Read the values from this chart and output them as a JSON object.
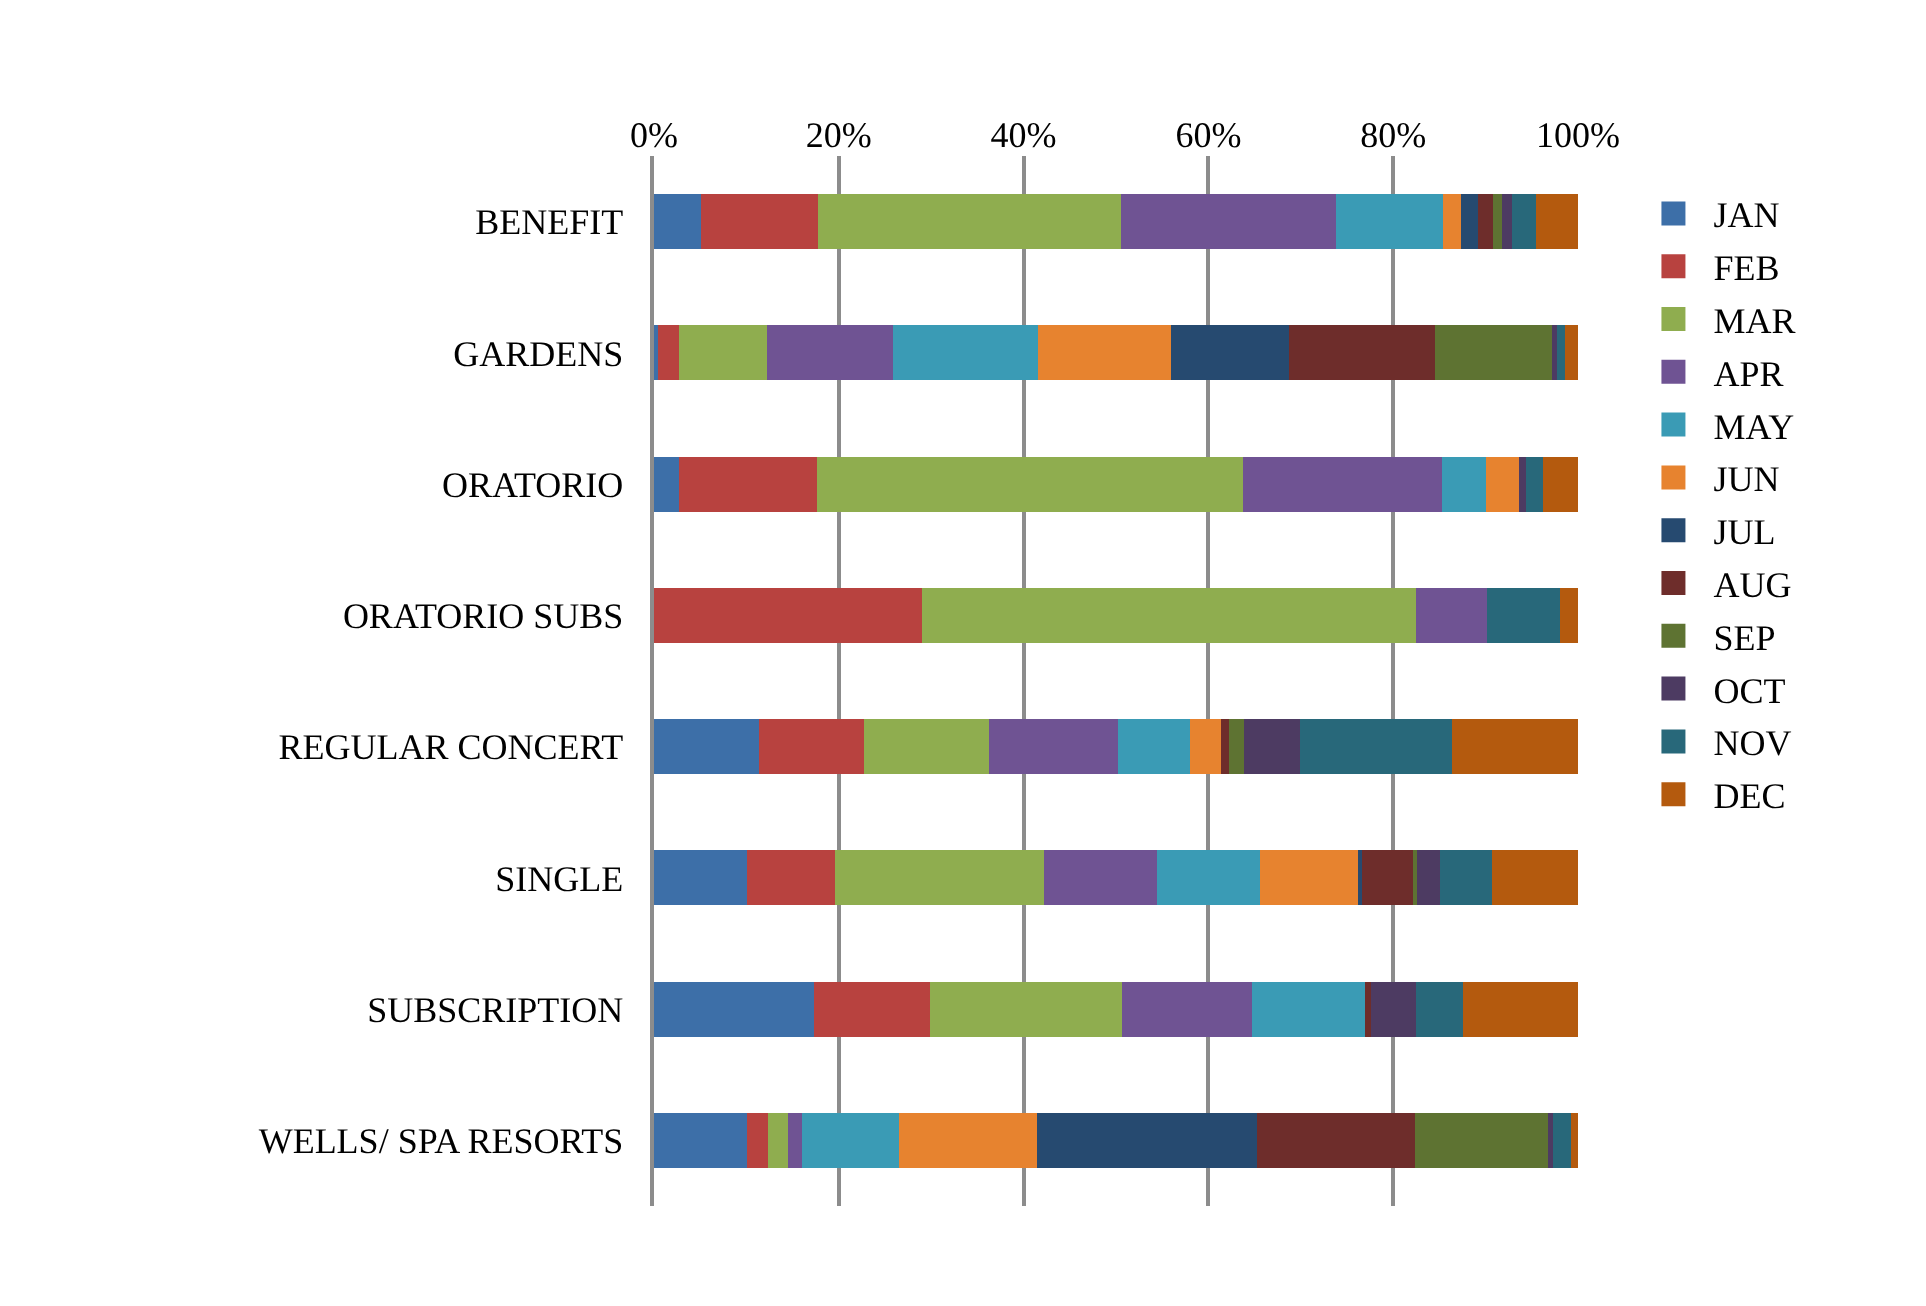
{
  "chart_data": {
    "type": "bar",
    "orientation": "horizontal",
    "stacked": true,
    "categories": [
      "BENEFIT",
      "GARDENS",
      "ORATORIO",
      "ORATORIO SUBS",
      "REGULAR CONCERT",
      "SINGLE",
      "SUBSCRIPTION",
      "WELLS/ SPA RESORTS"
    ],
    "series": [
      {
        "name": "JAN",
        "color": "#3d6fa8",
        "values": [
          5.1,
          0.4,
          2.7,
          0,
          11.4,
          10.1,
          17.3,
          10.1
        ]
      },
      {
        "name": "FEB",
        "color": "#b8423f",
        "values": [
          12.6,
          2.3,
          14.9,
          29.0,
          11.3,
          9.5,
          12.6,
          2.2
        ]
      },
      {
        "name": "MAR",
        "color": "#8fad4f",
        "values": [
          32.8,
          9.5,
          46.1,
          53.5,
          13.6,
          22.6,
          20.7,
          2.2
        ]
      },
      {
        "name": "APR",
        "color": "#6f5393",
        "values": [
          23.3,
          13.7,
          21.6,
          7.6,
          13.9,
          12.2,
          14.1,
          1.5
        ]
      },
      {
        "name": "MAY",
        "color": "#3a9bb5",
        "values": [
          11.6,
          15.7,
          4.7,
          0,
          7.8,
          11.2,
          12.2,
          10.5
        ]
      },
      {
        "name": "JUN",
        "color": "#e7832f",
        "values": [
          1.9,
          14.3,
          3.6,
          0,
          3.4,
          10.6,
          0,
          14.9
        ]
      },
      {
        "name": "JUL",
        "color": "#264a70",
        "values": [
          1.9,
          12.8,
          0,
          0,
          0,
          0.4,
          0,
          23.9
        ]
      },
      {
        "name": "AUG",
        "color": "#6e2d2b",
        "values": [
          1.6,
          15.8,
          0,
          0,
          0.8,
          5.5,
          0.7,
          17.1
        ]
      },
      {
        "name": "SEP",
        "color": "#5e7332",
        "values": [
          1.0,
          12.8,
          0,
          0,
          1.6,
          0.5,
          0,
          14.3
        ]
      },
      {
        "name": "OCT",
        "color": "#4d3b62",
        "values": [
          1.1,
          0.4,
          0.8,
          0,
          6.1,
          2.5,
          4.9,
          0.6
        ]
      },
      {
        "name": "NOV",
        "color": "#28687a",
        "values": [
          2.6,
          0.9,
          1.8,
          7.9,
          16.5,
          5.6,
          5.1,
          1.9
        ]
      },
      {
        "name": "DEC",
        "color": "#b45a0e",
        "values": [
          4.5,
          1.4,
          3.8,
          2.0,
          13.6,
          9.3,
          12.4,
          0.8
        ]
      }
    ],
    "xlim": [
      0,
      100
    ],
    "xticks": [
      {
        "value": 0,
        "label": "0%"
      },
      {
        "value": 20,
        "label": "20%"
      },
      {
        "value": 40,
        "label": "40%"
      },
      {
        "value": 60,
        "label": "60%"
      },
      {
        "value": 80,
        "label": "80%"
      },
      {
        "value": 100,
        "label": "100%"
      }
    ],
    "grid": "x",
    "legend": "right"
  }
}
